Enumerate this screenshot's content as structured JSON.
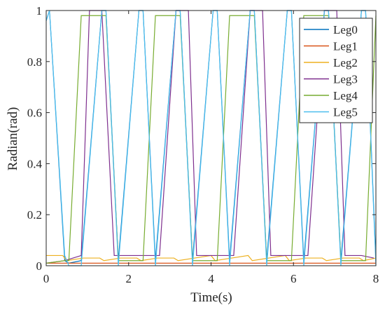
{
  "chart_data": {
    "type": "line",
    "xlabel": "Time(s)",
    "ylabel": "Radian(rad)",
    "xlim": [
      0,
      8
    ],
    "ylim": [
      0,
      1
    ],
    "xticks": [
      0,
      2,
      4,
      6,
      8
    ],
    "yticks": [
      0,
      0.2,
      0.4,
      0.6,
      0.8,
      1
    ],
    "xtick_labels": [
      "0",
      "2",
      "4",
      "6",
      "8"
    ],
    "ytick_labels": [
      "0",
      "0.2",
      "0.4",
      "0.6",
      "0.8",
      "1"
    ],
    "grid": false,
    "legend_position": "top-right",
    "series": [
      {
        "name": "Leg0",
        "color": "#0072BD",
        "x": [
          0.0,
          0.08,
          0.45,
          0.55,
          0.85,
          1.35,
          1.45,
          1.75,
          2.25,
          2.35,
          2.65,
          3.15,
          3.25,
          3.55,
          4.05,
          4.15,
          4.45,
          4.95,
          5.05,
          5.35,
          5.85,
          5.95,
          6.25,
          6.75,
          6.85,
          7.15,
          7.65,
          7.75,
          8.0
        ],
        "y": [
          0.96,
          1.0,
          0.02,
          0.01,
          0.02,
          1.0,
          1.0,
          0.02,
          1.0,
          1.0,
          0.02,
          1.0,
          1.0,
          0.02,
          1.0,
          1.0,
          0.02,
          1.0,
          1.0,
          0.02,
          1.0,
          1.0,
          0.02,
          1.0,
          1.0,
          0.02,
          1.0,
          1.0,
          0.02
        ]
      },
      {
        "name": "Leg1",
        "color": "#D95319",
        "x": [
          0.0,
          0.45,
          0.55,
          0.85,
          1.0,
          1.35,
          1.45,
          1.75,
          2.25,
          2.35,
          2.65,
          3.15,
          3.25,
          3.55,
          4.05,
          4.15,
          4.45,
          4.95,
          5.05,
          5.35,
          5.85,
          5.95,
          6.25,
          6.75,
          6.85,
          7.15,
          7.65,
          7.75,
          8.0
        ],
        "y": [
          0.01,
          0.01,
          0.01,
          0.01,
          0.01,
          0.01,
          0.01,
          0.01,
          0.01,
          0.01,
          0.01,
          0.01,
          0.01,
          0.01,
          0.01,
          0.01,
          0.01,
          0.01,
          0.01,
          0.01,
          0.01,
          0.01,
          0.01,
          0.01,
          0.01,
          0.01,
          0.01,
          0.01,
          0.01
        ]
      },
      {
        "name": "Leg2",
        "color": "#EDB120",
        "x": [
          0.0,
          0.4,
          0.5,
          0.9,
          1.3,
          1.4,
          1.8,
          2.2,
          2.3,
          2.7,
          3.1,
          3.2,
          3.6,
          4.0,
          4.1,
          4.5,
          4.9,
          5.0,
          5.4,
          5.8,
          5.9,
          6.3,
          6.7,
          6.8,
          7.2,
          7.6,
          7.7,
          8.0
        ],
        "y": [
          0.04,
          0.04,
          0.02,
          0.03,
          0.03,
          0.02,
          0.03,
          0.03,
          0.02,
          0.03,
          0.03,
          0.02,
          0.03,
          0.04,
          0.02,
          0.03,
          0.04,
          0.02,
          0.03,
          0.04,
          0.02,
          0.03,
          0.03,
          0.02,
          0.03,
          0.03,
          0.02,
          0.03
        ]
      },
      {
        "name": "Leg3",
        "color": "#7E2F8E",
        "x": [
          0.0,
          0.45,
          0.85,
          1.05,
          1.35,
          1.65,
          1.85,
          2.25,
          2.55,
          2.75,
          3.15,
          3.45,
          3.65,
          4.05,
          4.35,
          4.55,
          4.95,
          5.25,
          5.45,
          5.85,
          6.15,
          6.35,
          6.75,
          7.05,
          7.25,
          7.65,
          7.95
        ],
        "y": [
          0.01,
          0.02,
          0.04,
          1.0,
          1.0,
          0.04,
          0.04,
          0.04,
          0.04,
          0.04,
          1.0,
          1.0,
          0.04,
          0.04,
          0.04,
          0.04,
          1.0,
          1.0,
          0.04,
          0.04,
          0.04,
          0.04,
          1.0,
          1.0,
          0.04,
          0.04,
          0.03
        ]
      },
      {
        "name": "Leg4",
        "color": "#77AC30",
        "x": [
          0.0,
          0.45,
          0.55,
          0.85,
          1.35,
          1.45,
          1.75,
          2.25,
          2.35,
          2.65,
          3.15,
          3.25,
          3.55,
          4.05,
          4.15,
          4.45,
          4.95,
          5.05,
          5.35,
          5.85,
          5.95,
          6.25,
          6.75,
          6.85,
          7.15,
          7.65,
          7.75,
          8.0
        ],
        "y": [
          0.01,
          0.02,
          0.02,
          0.98,
          0.98,
          0.98,
          0.02,
          0.02,
          0.02,
          0.98,
          0.98,
          0.98,
          0.02,
          0.02,
          0.02,
          0.98,
          0.98,
          0.98,
          0.02,
          0.02,
          0.02,
          0.98,
          0.98,
          0.98,
          0.02,
          0.02,
          0.02,
          0.98
        ]
      },
      {
        "name": "Leg5",
        "color": "#4DBEEE",
        "x": [
          0.0,
          0.08,
          0.45,
          0.55,
          0.85,
          1.35,
          1.45,
          1.75,
          2.25,
          2.35,
          2.65,
          3.15,
          3.25,
          3.55,
          4.05,
          4.15,
          4.45,
          4.95,
          5.05,
          5.35,
          5.85,
          5.95,
          6.25,
          6.75,
          6.85,
          7.15,
          7.65,
          7.75,
          8.0
        ],
        "y": [
          0.96,
          1.0,
          0.04,
          0.0,
          0.0,
          1.0,
          1.0,
          0.0,
          1.0,
          1.0,
          0.0,
          1.0,
          1.0,
          0.0,
          1.0,
          1.0,
          0.0,
          1.0,
          1.0,
          0.0,
          1.0,
          1.0,
          0.0,
          1.0,
          1.0,
          0.0,
          1.0,
          1.0,
          0.0
        ]
      }
    ]
  }
}
